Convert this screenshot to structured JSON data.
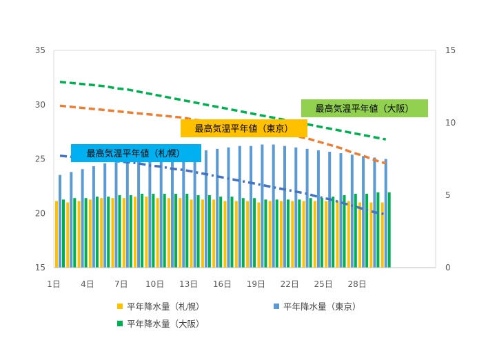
{
  "chart_data": {
    "type": "bar",
    "x": [
      1,
      2,
      3,
      4,
      5,
      6,
      7,
      8,
      9,
      10,
      11,
      12,
      13,
      14,
      15,
      16,
      17,
      18,
      19,
      20,
      21,
      22,
      23,
      24,
      25,
      26,
      27,
      28,
      29,
      30
    ],
    "x_tick_labels": [
      "1日",
      "4日",
      "7日",
      "10日",
      "13日",
      "16日",
      "19日",
      "22日",
      "25日",
      "28日"
    ],
    "y_left": {
      "min": 15,
      "max": 35,
      "ticks": [
        "15",
        "20",
        "25",
        "30",
        "35"
      ]
    },
    "y_right": {
      "min": 0,
      "max": 15,
      "ticks": [
        "0",
        "5",
        "10",
        "15"
      ]
    },
    "bar_series": [
      {
        "name": "平年降水量（札幌）",
        "color": "#FFC000",
        "axis": "right",
        "values": [
          4.6,
          4.5,
          4.6,
          4.7,
          4.8,
          4.8,
          4.8,
          4.9,
          4.9,
          4.8,
          4.8,
          4.8,
          4.7,
          4.7,
          4.7,
          4.6,
          4.6,
          4.6,
          4.5,
          4.6,
          4.6,
          4.6,
          4.6,
          4.6,
          4.6,
          4.6,
          4.6,
          4.5,
          4.5,
          4.5
        ]
      },
      {
        "name": "平年降水量（東京）",
        "color": "#5B9BD5",
        "axis": "right",
        "values": [
          6.4,
          6.6,
          6.8,
          7.0,
          7.2,
          7.3,
          7.4,
          7.5,
          7.6,
          7.7,
          7.8,
          7.9,
          8.0,
          8.1,
          8.2,
          8.3,
          8.4,
          8.4,
          8.5,
          8.5,
          8.4,
          8.3,
          8.2,
          8.1,
          8.0,
          7.9,
          7.8,
          7.7,
          7.6,
          7.5
        ]
      },
      {
        "name": "平年降水量（大阪）",
        "color": "#00B050",
        "axis": "right",
        "values": [
          4.7,
          4.8,
          4.8,
          4.9,
          4.9,
          5.0,
          5.0,
          5.1,
          5.1,
          5.1,
          5.1,
          5.1,
          5.0,
          5.0,
          4.9,
          4.9,
          4.8,
          4.8,
          4.7,
          4.7,
          4.7,
          4.7,
          4.8,
          4.8,
          4.9,
          5.0,
          5.1,
          5.1,
          5.2,
          5.2
        ]
      }
    ],
    "line_series": [
      {
        "name": "最高気温平年値（大阪）",
        "color": "#00B050",
        "axis": "left",
        "style": "dashed",
        "values": [
          32.1,
          32.0,
          31.9,
          31.8,
          31.7,
          31.5,
          31.4,
          31.2,
          31.0,
          30.8,
          30.6,
          30.4,
          30.2,
          30.0,
          29.8,
          29.6,
          29.4,
          29.2,
          29.0,
          28.8,
          28.6,
          28.4,
          28.2,
          28.0,
          27.8,
          27.6,
          27.4,
          27.2,
          27.0,
          26.8
        ]
      },
      {
        "name": "最高気温平年値（東京）",
        "color": "#ED7D31",
        "axis": "left",
        "style": "dashed",
        "values": [
          29.9,
          29.8,
          29.7,
          29.6,
          29.5,
          29.4,
          29.3,
          29.2,
          29.1,
          29.0,
          28.9,
          28.8,
          28.6,
          28.5,
          28.4,
          28.2,
          28.1,
          27.9,
          27.7,
          27.5,
          27.3,
          27.1,
          26.9,
          26.6,
          26.3,
          26.0,
          25.6,
          25.3,
          24.9,
          24.6
        ]
      },
      {
        "name": "最高気温平年値（札幌）",
        "color": "#4472C4",
        "axis": "left",
        "style": "dashdot",
        "values": [
          25.3,
          25.2,
          25.1,
          25.0,
          24.9,
          24.8,
          24.7,
          24.6,
          24.4,
          24.3,
          24.1,
          24.0,
          23.8,
          23.6,
          23.4,
          23.2,
          23.0,
          22.8,
          22.6,
          22.4,
          22.2,
          22.0,
          21.8,
          21.5,
          21.3,
          21.0,
          20.7,
          20.4,
          20.1,
          19.9
        ]
      }
    ],
    "annotations": [
      {
        "text": "最高気温平年値（大阪）",
        "bg": "#92D050"
      },
      {
        "text": "最高気温平年値（東京）",
        "bg": "#FFC000"
      },
      {
        "text": "最高気温平年値（札幌）",
        "bg": "#00B0F0"
      }
    ],
    "legend": [
      "平年降水量（札幌）",
      "平年降水量（東京）",
      "平年降水量（大阪）"
    ],
    "grid": false
  }
}
